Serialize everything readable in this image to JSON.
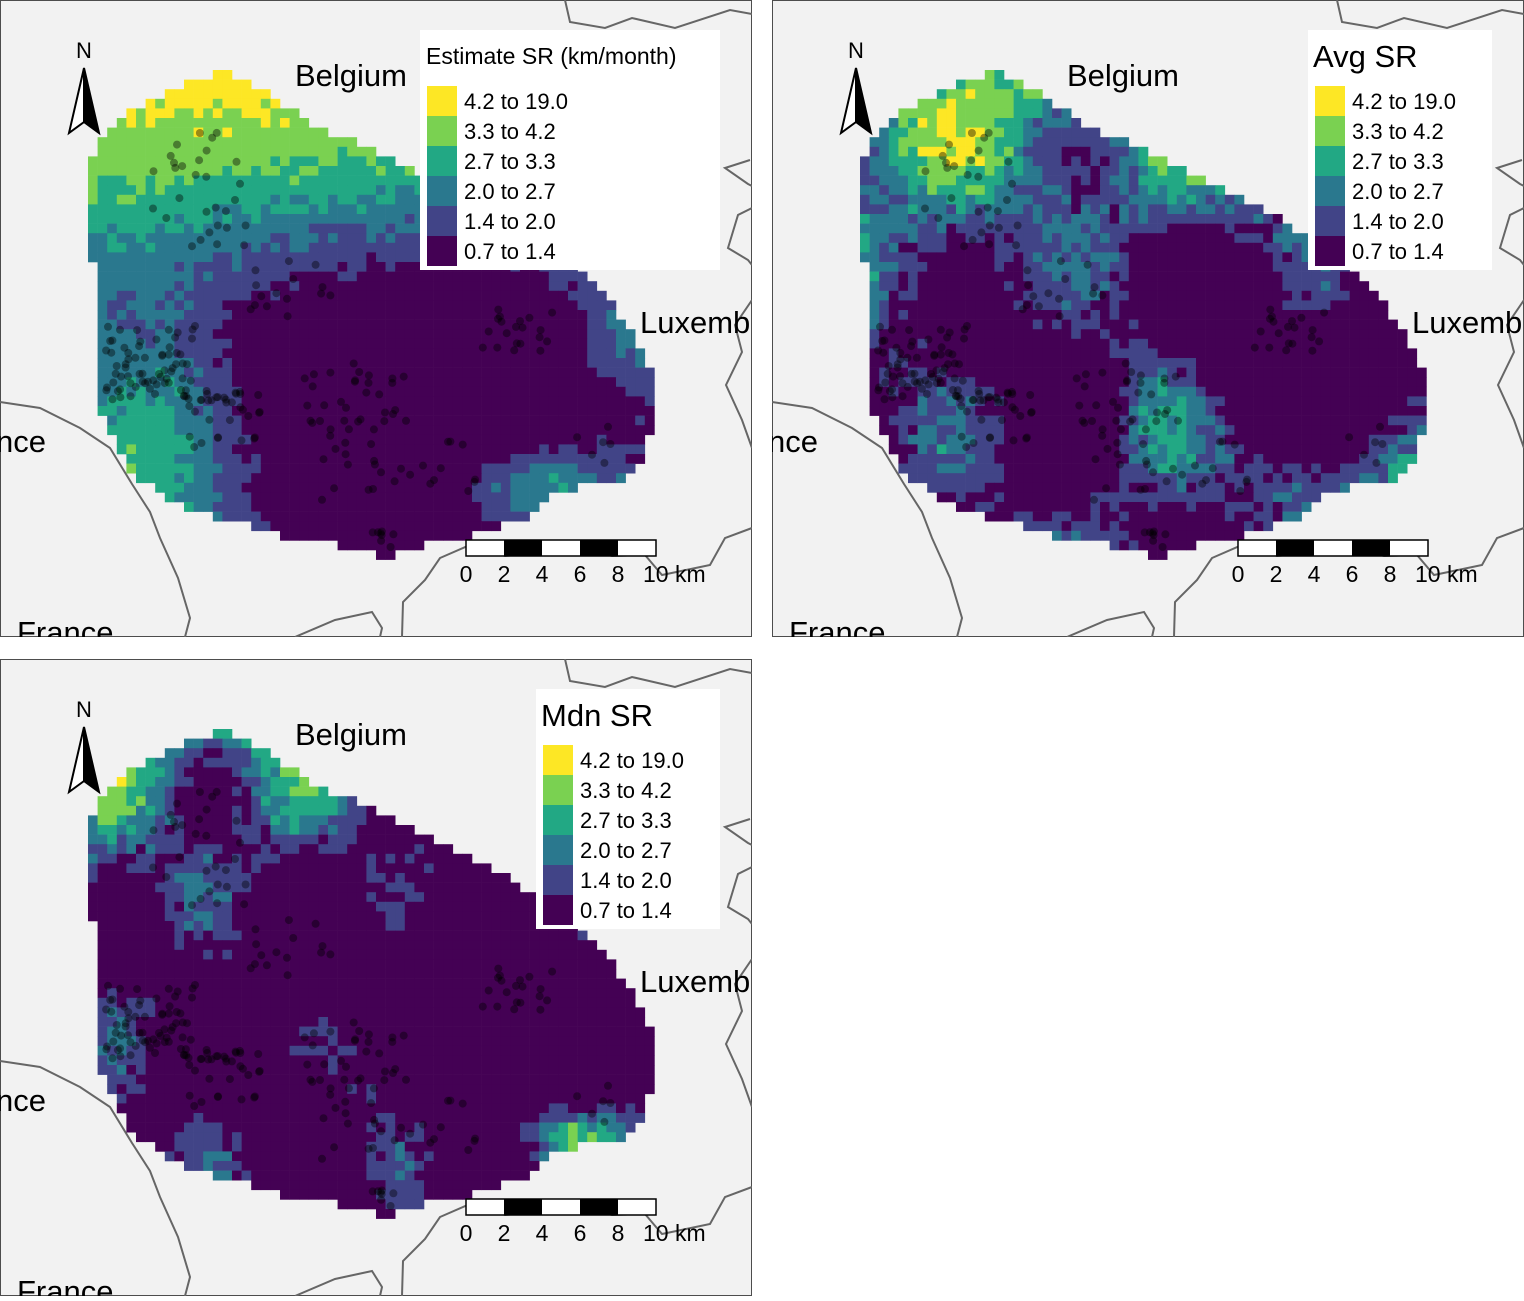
{
  "legend_classes": [
    {
      "label": "4.2 to 19.0",
      "color": "#fde725"
    },
    {
      "label": "3.3 to 4.2",
      "color": "#7ad151"
    },
    {
      "label": "2.7 to 3.3",
      "color": "#22a884"
    },
    {
      "label": "2.0 to 2.7",
      "color": "#2a788e"
    },
    {
      "label": "1.4 to 2.0",
      "color": "#414487"
    },
    {
      "label": "0.7 to 1.4",
      "color": "#440154"
    }
  ],
  "colors": {
    "background": "#f2f2f2",
    "border": "#4d4d4d",
    "point": "#000000"
  },
  "place_labels": {
    "belgium": "Belgium",
    "luxembourg": "Luxemb",
    "france_partial": "nce",
    "france": "France"
  },
  "north_arrow_label": "N",
  "scale_bar": {
    "ticks": [
      "0",
      "2",
      "4",
      "6",
      "8",
      "10 km"
    ]
  },
  "panels": [
    {
      "legend_title": "Estimate SR (km/month)"
    },
    {
      "legend_title": "Avg SR"
    },
    {
      "legend_title": "Mdn SR"
    }
  ]
}
